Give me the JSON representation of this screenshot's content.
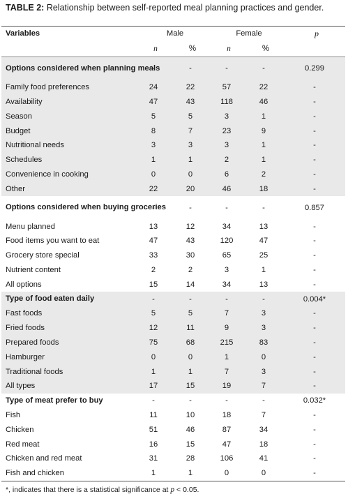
{
  "caption": {
    "label": "TABLE 2:",
    "text": "Relationship between self-reported meal planning practices and gender."
  },
  "header": {
    "variables": "Variables",
    "male": "Male",
    "female": "Female",
    "p": "p",
    "n": "n",
    "pct": "%"
  },
  "rows": [
    {
      "type": "section",
      "shaded": true,
      "tall": true,
      "label": "Options considered when planning meals",
      "m_n": "-",
      "m_pct": "-",
      "f_n": "-",
      "f_pct": "-",
      "p": "0.299"
    },
    {
      "type": "item",
      "shaded": true,
      "label": "Family food preferences",
      "m_n": "24",
      "m_pct": "22",
      "f_n": "57",
      "f_pct": "22",
      "p": "-"
    },
    {
      "type": "item",
      "shaded": true,
      "label": "Availability",
      "m_n": "47",
      "m_pct": "43",
      "f_n": "118",
      "f_pct": "46",
      "p": "-"
    },
    {
      "type": "item",
      "shaded": true,
      "label": "Season",
      "m_n": "5",
      "m_pct": "5",
      "f_n": "3",
      "f_pct": "1",
      "p": "-"
    },
    {
      "type": "item",
      "shaded": true,
      "label": "Budget",
      "m_n": "8",
      "m_pct": "7",
      "f_n": "23",
      "f_pct": "9",
      "p": "-"
    },
    {
      "type": "item",
      "shaded": true,
      "label": "Nutritional needs",
      "m_n": "3",
      "m_pct": "3",
      "f_n": "3",
      "f_pct": "1",
      "p": "-"
    },
    {
      "type": "item",
      "shaded": true,
      "label": "Schedules",
      "m_n": "1",
      "m_pct": "1",
      "f_n": "2",
      "f_pct": "1",
      "p": "-"
    },
    {
      "type": "item",
      "shaded": true,
      "label": "Convenience in cooking",
      "m_n": "0",
      "m_pct": "0",
      "f_n": "6",
      "f_pct": "2",
      "p": "-"
    },
    {
      "type": "item",
      "shaded": true,
      "label": "Other",
      "m_n": "22",
      "m_pct": "20",
      "f_n": "46",
      "f_pct": "18",
      "p": "-"
    },
    {
      "type": "section",
      "shaded": false,
      "tall": true,
      "label": "Options considered when buying groceries",
      "m_n": "-",
      "m_pct": "-",
      "f_n": "-",
      "f_pct": "-",
      "p": "0.857"
    },
    {
      "type": "item",
      "shaded": false,
      "label": "Menu planned",
      "m_n": "13",
      "m_pct": "12",
      "f_n": "34",
      "f_pct": "13",
      "p": "-"
    },
    {
      "type": "item",
      "shaded": false,
      "label": "Food items you want to eat",
      "m_n": "47",
      "m_pct": "43",
      "f_n": "120",
      "f_pct": "47",
      "p": "-"
    },
    {
      "type": "item",
      "shaded": false,
      "label": "Grocery store special",
      "m_n": "33",
      "m_pct": "30",
      "f_n": "65",
      "f_pct": "25",
      "p": "-"
    },
    {
      "type": "item",
      "shaded": false,
      "label": "Nutrient content",
      "m_n": "2",
      "m_pct": "2",
      "f_n": "3",
      "f_pct": "1",
      "p": "-"
    },
    {
      "type": "item",
      "shaded": false,
      "label": "All options",
      "m_n": "15",
      "m_pct": "14",
      "f_n": "34",
      "f_pct": "13",
      "p": "-"
    },
    {
      "type": "section",
      "shaded": true,
      "tall": false,
      "label": "Type of food eaten daily",
      "m_n": "-",
      "m_pct": "-",
      "f_n": "-",
      "f_pct": "-",
      "p": "0.004*"
    },
    {
      "type": "item",
      "shaded": true,
      "label": "Fast foods",
      "m_n": "5",
      "m_pct": "5",
      "f_n": "7",
      "f_pct": "3",
      "p": "-"
    },
    {
      "type": "item",
      "shaded": true,
      "label": "Fried foods",
      "m_n": "12",
      "m_pct": "11",
      "f_n": "9",
      "f_pct": "3",
      "p": "-"
    },
    {
      "type": "item",
      "shaded": true,
      "label": "Prepared foods",
      "m_n": "75",
      "m_pct": "68",
      "f_n": "215",
      "f_pct": "83",
      "p": "-"
    },
    {
      "type": "item",
      "shaded": true,
      "label": "Hamburger",
      "m_n": "0",
      "m_pct": "0",
      "f_n": "1",
      "f_pct": "0",
      "p": "-"
    },
    {
      "type": "item",
      "shaded": true,
      "label": "Traditional foods",
      "m_n": "1",
      "m_pct": "1",
      "f_n": "7",
      "f_pct": "3",
      "p": "-"
    },
    {
      "type": "item",
      "shaded": true,
      "label": "All types",
      "m_n": "17",
      "m_pct": "15",
      "f_n": "19",
      "f_pct": "7",
      "p": "-"
    },
    {
      "type": "section",
      "shaded": false,
      "tall": false,
      "label": "Type of meat prefer to buy",
      "m_n": "-",
      "m_pct": "-",
      "f_n": "-",
      "f_pct": "-",
      "p": "0.032*"
    },
    {
      "type": "item",
      "shaded": false,
      "label": "Fish",
      "m_n": "11",
      "m_pct": "10",
      "f_n": "18",
      "f_pct": "7",
      "p": "-"
    },
    {
      "type": "item",
      "shaded": false,
      "label": "Chicken",
      "m_n": "51",
      "m_pct": "46",
      "f_n": "87",
      "f_pct": "34",
      "p": "-"
    },
    {
      "type": "item",
      "shaded": false,
      "label": "Red meat",
      "m_n": "16",
      "m_pct": "15",
      "f_n": "47",
      "f_pct": "18",
      "p": "-"
    },
    {
      "type": "item",
      "shaded": false,
      "label": "Chicken and red meat",
      "m_n": "31",
      "m_pct": "28",
      "f_n": "106",
      "f_pct": "41",
      "p": "-"
    },
    {
      "type": "item",
      "shaded": false,
      "label": "Fish and chicken",
      "m_n": "1",
      "m_pct": "1",
      "f_n": "0",
      "f_pct": "0",
      "p": "-"
    }
  ],
  "footnote": {
    "prefix": "*, indicates that there is a statistical significance at ",
    "p": "p",
    "suffix": " < 0.05."
  },
  "colors": {
    "shade": "#e9e9e9",
    "rule": "#555555"
  }
}
